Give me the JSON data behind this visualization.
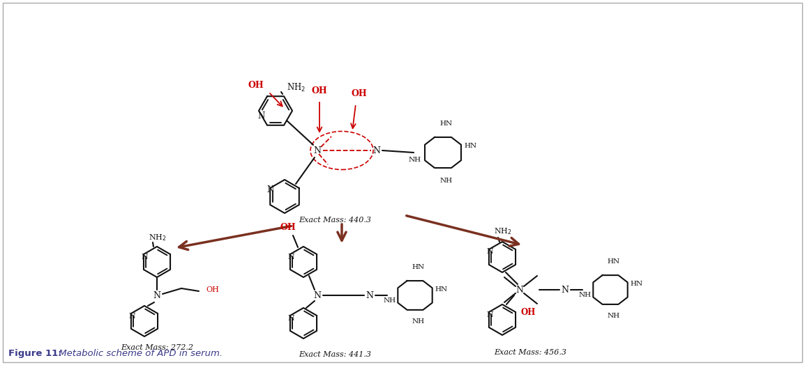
{
  "background_color": "#ffffff",
  "border_color": "#aaaaaa",
  "caption_bold": "Figure 11:",
  "caption_italic": " Metabolic scheme of APD in serum.",
  "caption_color": "#3a3a8a",
  "caption_fontsize": 9.5,
  "exact_mass_top": "Exact Mass: 440.3",
  "exact_mass_left": "Exact Mass: 272.2",
  "exact_mass_center": "Exact Mass: 441.3",
  "exact_mass_right": "Exact Mass: 456.3",
  "exact_mass_fontsize": 8,
  "arrow_color": "#7a3020",
  "red_color": "#cc0000",
  "black_color": "#111111"
}
